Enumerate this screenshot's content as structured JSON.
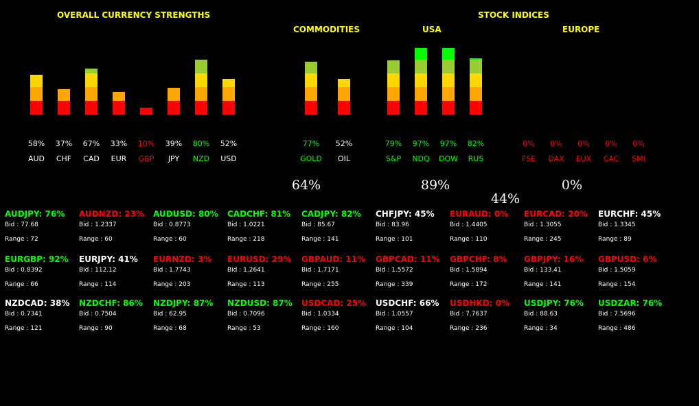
{
  "headers": {
    "overall": "OVERALL CURRENCY STRENGTHS",
    "commodities": "COMMODITIES",
    "stock_indices": "STOCK INDICES",
    "usa": "USA",
    "europe": "EUROPE"
  },
  "colors": {
    "green": "#00ff00",
    "red": "#ff0000",
    "white": "#ffffff",
    "yellow_header": "#ffff00",
    "seg_red": "#ff0000",
    "seg_orange": "#ffa500",
    "seg_yellow": "#ffd700",
    "seg_lightgreen": "#9acd32",
    "seg_green": "#00ff00"
  },
  "chart_data": [
    {
      "type": "bar",
      "title": "OVERALL CURRENCY STRENGTHS",
      "categories": [
        "AUD",
        "CHF",
        "CAD",
        "EUR",
        "GBP",
        "JPY",
        "NZD",
        "USD"
      ],
      "values": [
        58,
        37,
        67,
        33,
        10,
        39,
        80,
        52
      ],
      "labels": [
        "58%",
        "37%",
        "67%",
        "33%",
        "10%",
        "39%",
        "80%",
        "52%"
      ],
      "label_colors": [
        "white",
        "white",
        "white",
        "white",
        "red",
        "white",
        "green",
        "white"
      ],
      "ylim": [
        0,
        100
      ]
    },
    {
      "type": "bar",
      "title": "COMMODITIES",
      "categories": [
        "GOLD",
        "OIL"
      ],
      "values": [
        77,
        52
      ],
      "labels": [
        "77%",
        "52%"
      ],
      "label_colors": [
        "green",
        "white"
      ],
      "ylim": [
        0,
        100
      ]
    },
    {
      "type": "bar",
      "title": "USA",
      "categories": [
        "S&P",
        "NDQ",
        "DOW",
        "RUS"
      ],
      "values": [
        79,
        97,
        97,
        82
      ],
      "labels": [
        "79%",
        "97%",
        "97%",
        "82%"
      ],
      "label_colors": [
        "green",
        "green",
        "green",
        "green"
      ],
      "ylim": [
        0,
        100
      ]
    },
    {
      "type": "bar",
      "title": "EUROPE",
      "categories": [
        "FSE",
        "DAX",
        "EUX",
        "CAC",
        "SMI"
      ],
      "values": [
        0,
        0,
        0,
        0,
        0
      ],
      "labels": [
        "0%",
        "0%",
        "0%",
        "0%",
        "0%"
      ],
      "label_colors": [
        "red",
        "red",
        "red",
        "red",
        "red"
      ],
      "ylim": [
        0,
        100
      ]
    }
  ],
  "summaries": {
    "commodities": "64%",
    "usa": "89%",
    "overall_stock": "44%",
    "europe": "0%"
  },
  "pairs": [
    {
      "name": "AUDJPY: 76%",
      "color": "green",
      "bid": "Bid : 77.68",
      "range": "Range : 72"
    },
    {
      "name": "AUDNZD: 23%",
      "color": "red",
      "bid": "Bid : 1.2337",
      "range": "Range : 60"
    },
    {
      "name": "AUDUSD: 80%",
      "color": "green",
      "bid": "Bid : 0.8773",
      "range": "Range : 60"
    },
    {
      "name": "CADCHF: 81%",
      "color": "green",
      "bid": "Bid : 1.0221",
      "range": "Range : 218"
    },
    {
      "name": "CADJPY: 82%",
      "color": "green",
      "bid": "Bid : 85.67",
      "range": "Range : 141"
    },
    {
      "name": "CHFJPY: 45%",
      "color": "white",
      "bid": "Bid : 83.96",
      "range": "Range : 101"
    },
    {
      "name": "EURAUD: 0%",
      "color": "red",
      "bid": "Bid : 1.4405",
      "range": "Range : 110"
    },
    {
      "name": "EURCAD: 20%",
      "color": "red",
      "bid": "Bid : 1.3055",
      "range": "Range : 245"
    },
    {
      "name": "EURCHF: 45%",
      "color": "white",
      "bid": "Bid : 1.3345",
      "range": "Range : 89"
    },
    {
      "name": "EURGBP: 92%",
      "color": "green",
      "bid": "Bid : 0.8392",
      "range": "Range : 66"
    },
    {
      "name": "EURJPY: 41%",
      "color": "white",
      "bid": "Bid : 112.12",
      "range": "Range : 114"
    },
    {
      "name": "EURNZD: 3%",
      "color": "red",
      "bid": "Bid : 1.7743",
      "range": "Range : 203"
    },
    {
      "name": "EURUSD: 29%",
      "color": "red",
      "bid": "Bid : 1.2641",
      "range": "Range : 113"
    },
    {
      "name": "GBPAUD: 11%",
      "color": "red",
      "bid": "Bid : 1.7171",
      "range": "Range : 255"
    },
    {
      "name": "GBPCAD: 11%",
      "color": "red",
      "bid": "Bid : 1.5572",
      "range": "Range : 339"
    },
    {
      "name": "GBPCHF: 8%",
      "color": "red",
      "bid": "Bid : 1.5894",
      "range": "Range : 172"
    },
    {
      "name": "GBPJPY: 16%",
      "color": "red",
      "bid": "Bid : 133.41",
      "range": "Range : 141"
    },
    {
      "name": "GBPUSD: 6%",
      "color": "red",
      "bid": "Bid : 1.5059",
      "range": "Range : 154"
    },
    {
      "name": "NZDCAD: 38%",
      "color": "white",
      "bid": "Bid : 0.7341",
      "range": "Range : 121"
    },
    {
      "name": "NZDCHF: 86%",
      "color": "green",
      "bid": "Bid : 0.7504",
      "range": "Range : 90"
    },
    {
      "name": "NZDJPY: 87%",
      "color": "green",
      "bid": "Bid : 62.95",
      "range": "Range : 68"
    },
    {
      "name": "NZDUSD: 87%",
      "color": "green",
      "bid": "Bid : 0.7096",
      "range": "Range : 53"
    },
    {
      "name": "USDCAD: 25%",
      "color": "red",
      "bid": "Bid : 1.0334",
      "range": "Range : 160"
    },
    {
      "name": "USDCHF: 66%",
      "color": "white",
      "bid": "Bid : 1.0557",
      "range": "Range : 104"
    },
    {
      "name": "USDHKD: 0%",
      "color": "red",
      "bid": "Bid : 7.7637",
      "range": "Range : 236"
    },
    {
      "name": "USDJPY: 76%",
      "color": "green",
      "bid": "Bid : 88.63",
      "range": "Range : 34"
    },
    {
      "name": "USDZAR: 76%",
      "color": "green",
      "bid": "Bid : 7.5696",
      "range": "Range : 486"
    }
  ]
}
